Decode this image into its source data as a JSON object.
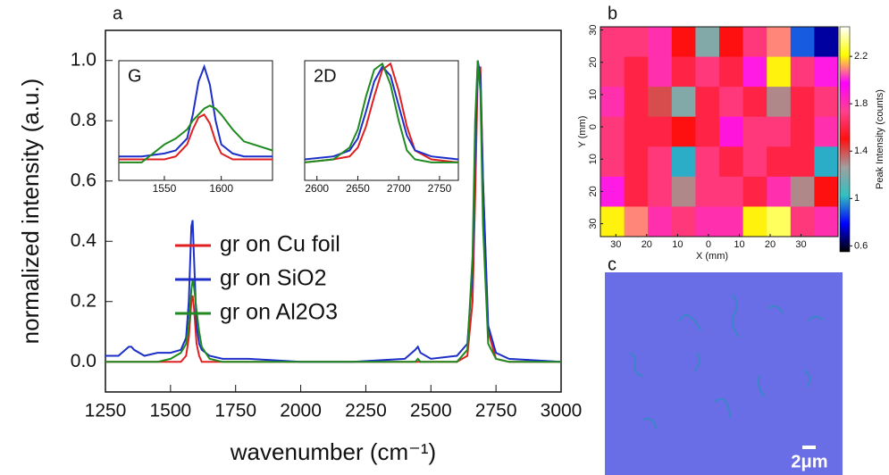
{
  "chart_data": [
    {
      "type": "line",
      "panel_label": "a",
      "xlabel": "wavenumber (cm⁻¹)",
      "ylabel": "normalized intensity (a.u.)",
      "xlim": [
        1250,
        3000
      ],
      "ylim": [
        -0.1,
        1.1
      ],
      "xticks": [
        1250,
        1500,
        1750,
        2000,
        2250,
        2500,
        2750,
        3000
      ],
      "yticks": [
        {
          "value": 0,
          "label": "0.0"
        },
        0.2,
        0.4,
        0.6,
        0.8,
        {
          "value": 1,
          "label": "1.0"
        }
      ],
      "legend": "center",
      "x": [
        1250,
        1300,
        1340,
        1350,
        1360,
        1400,
        1450,
        1500,
        1540,
        1560,
        1570,
        1580,
        1585,
        1590,
        1600,
        1610,
        1620,
        1650,
        1700,
        1800,
        2000,
        2200,
        2400,
        2440,
        2450,
        2460,
        2500,
        2600,
        2640,
        2660,
        2670,
        2680,
        2690,
        2700,
        2720,
        2750,
        2800,
        3000
      ],
      "series": [
        {
          "name": "gr on Cu foil",
          "color": "#e02020",
          "values": [
            0,
            0,
            0,
            0,
            0,
            0,
            0,
            0,
            0,
            0.02,
            0.08,
            0.2,
            0.22,
            0.18,
            0.06,
            0.02,
            0,
            0,
            0,
            0,
            0,
            0,
            0,
            0,
            0,
            0,
            0,
            0,
            0.02,
            0.2,
            0.55,
            0.95,
            0.98,
            0.6,
            0.1,
            0.01,
            0,
            0
          ]
        },
        {
          "name": "gr on SiO2",
          "color": "#1c2fc8",
          "values": [
            0.02,
            0.02,
            0.05,
            0.05,
            0.04,
            0.02,
            0.03,
            0.03,
            0.04,
            0.08,
            0.2,
            0.45,
            0.47,
            0.35,
            0.12,
            0.06,
            0.04,
            0.02,
            0.01,
            0.01,
            0,
            0,
            0.01,
            0.04,
            0.05,
            0.03,
            0.01,
            0.02,
            0.06,
            0.3,
            0.7,
            1.0,
            0.95,
            0.6,
            0.12,
            0.03,
            0.01,
            0
          ]
        },
        {
          "name": "gr on Al2O3",
          "color": "#1f8a1f",
          "values": [
            0,
            0,
            0,
            0,
            0,
            0,
            0,
            0.01,
            0.03,
            0.06,
            0.12,
            0.24,
            0.27,
            0.25,
            0.17,
            0.1,
            0.05,
            0.01,
            0,
            0,
            0,
            0,
            0,
            0,
            0.01,
            0,
            0,
            0,
            0.04,
            0.35,
            0.8,
            1.0,
            0.9,
            0.45,
            0.06,
            0.01,
            0,
            0
          ]
        }
      ]
    },
    {
      "type": "line",
      "title": "G",
      "xlim": [
        1510,
        1645
      ],
      "ylim": [
        0.6,
        1.0
      ],
      "xticks": [
        1550,
        1600
      ],
      "x": [
        1510,
        1530,
        1550,
        1560,
        1570,
        1575,
        1580,
        1585,
        1590,
        1595,
        1600,
        1610,
        1620,
        1645
      ],
      "series": [
        {
          "color": "#e02020",
          "values": [
            0.67,
            0.67,
            0.67,
            0.68,
            0.72,
            0.77,
            0.81,
            0.82,
            0.79,
            0.73,
            0.69,
            0.67,
            0.67,
            0.67
          ]
        },
        {
          "color": "#1c2fc8",
          "values": [
            0.68,
            0.68,
            0.69,
            0.7,
            0.74,
            0.82,
            0.93,
            0.98,
            0.92,
            0.8,
            0.72,
            0.69,
            0.68,
            0.68
          ]
        },
        {
          "color": "#1f8a1f",
          "values": [
            0.66,
            0.66,
            0.72,
            0.74,
            0.77,
            0.8,
            0.82,
            0.84,
            0.85,
            0.84,
            0.82,
            0.77,
            0.73,
            0.7
          ]
        }
      ]
    },
    {
      "type": "line",
      "title": "2D",
      "xlim": [
        2585,
        2773
      ],
      "ylim": [
        0.6,
        1.0
      ],
      "xticks": [
        2600,
        2650,
        2700,
        2750
      ],
      "x": [
        2585,
        2620,
        2640,
        2650,
        2660,
        2670,
        2680,
        2690,
        2700,
        2710,
        2720,
        2740,
        2773
      ],
      "series": [
        {
          "color": "#e02020",
          "values": [
            0.66,
            0.67,
            0.68,
            0.71,
            0.78,
            0.88,
            0.97,
            0.99,
            0.9,
            0.78,
            0.7,
            0.67,
            0.66
          ]
        },
        {
          "color": "#1c2fc8",
          "values": [
            0.67,
            0.68,
            0.7,
            0.74,
            0.83,
            0.93,
            0.98,
            0.95,
            0.85,
            0.75,
            0.7,
            0.68,
            0.67
          ]
        },
        {
          "color": "#1f8a1f",
          "values": [
            0.66,
            0.67,
            0.71,
            0.77,
            0.88,
            0.97,
            0.99,
            0.92,
            0.8,
            0.7,
            0.67,
            0.66,
            0.66
          ]
        }
      ]
    },
    {
      "type": "heatmap",
      "panel_label": "b",
      "xlabel": "X (mm)",
      "ylabel": "Y (mm)",
      "clabel": "Peak Intensity (counts)",
      "xlim": [
        -35,
        42
      ],
      "ylim": [
        -34,
        31
      ],
      "xticks": [
        {
          "value": -30,
          "label": "30"
        },
        {
          "value": -20,
          "label": "20"
        },
        {
          "value": -10,
          "label": "10"
        },
        0,
        10,
        20,
        30
      ],
      "yticks": [
        30,
        20,
        10,
        0,
        {
          "value": -10,
          "label": "10"
        },
        {
          "value": -20,
          "label": "20"
        },
        {
          "value": -30,
          "label": "30"
        }
      ],
      "clim": [
        0.55,
        2.45
      ],
      "cticks": [
        0.6,
        1.0,
        1.4,
        1.8,
        2.2
      ],
      "colorscale": [
        "#000000",
        "#0000ff",
        "#30c0c0",
        "#a0a0a0",
        "#ff1010",
        "#ff4090",
        "#ff00ff",
        "#ffff00",
        "#ffffff"
      ],
      "z": [
        [
          1.7,
          1.7,
          1.8,
          1.5,
          1.2,
          1.5,
          1.7,
          2.1,
          0.9,
          0.7
        ],
        [
          1.7,
          1.6,
          1.8,
          1.6,
          1.7,
          1.6,
          2.0,
          2.2,
          1.7,
          2.0
        ],
        [
          1.8,
          1.6,
          1.4,
          1.2,
          1.6,
          1.7,
          1.6,
          1.3,
          1.6,
          1.7
        ],
        [
          1.7,
          1.6,
          1.6,
          1.5,
          1.6,
          1.9,
          1.7,
          1.7,
          1.6,
          1.8
        ],
        [
          1.7,
          1.6,
          1.7,
          1.0,
          1.7,
          1.6,
          1.7,
          1.6,
          1.6,
          1.0
        ],
        [
          2.0,
          1.6,
          1.7,
          1.3,
          1.7,
          1.7,
          1.6,
          1.8,
          1.3,
          1.5
        ],
        [
          2.2,
          2.1,
          1.8,
          1.7,
          1.8,
          1.8,
          2.2,
          2.3,
          1.7,
          1.8
        ]
      ]
    },
    {
      "type": "image",
      "panel_label": "c",
      "scale_label": "2μm"
    }
  ]
}
